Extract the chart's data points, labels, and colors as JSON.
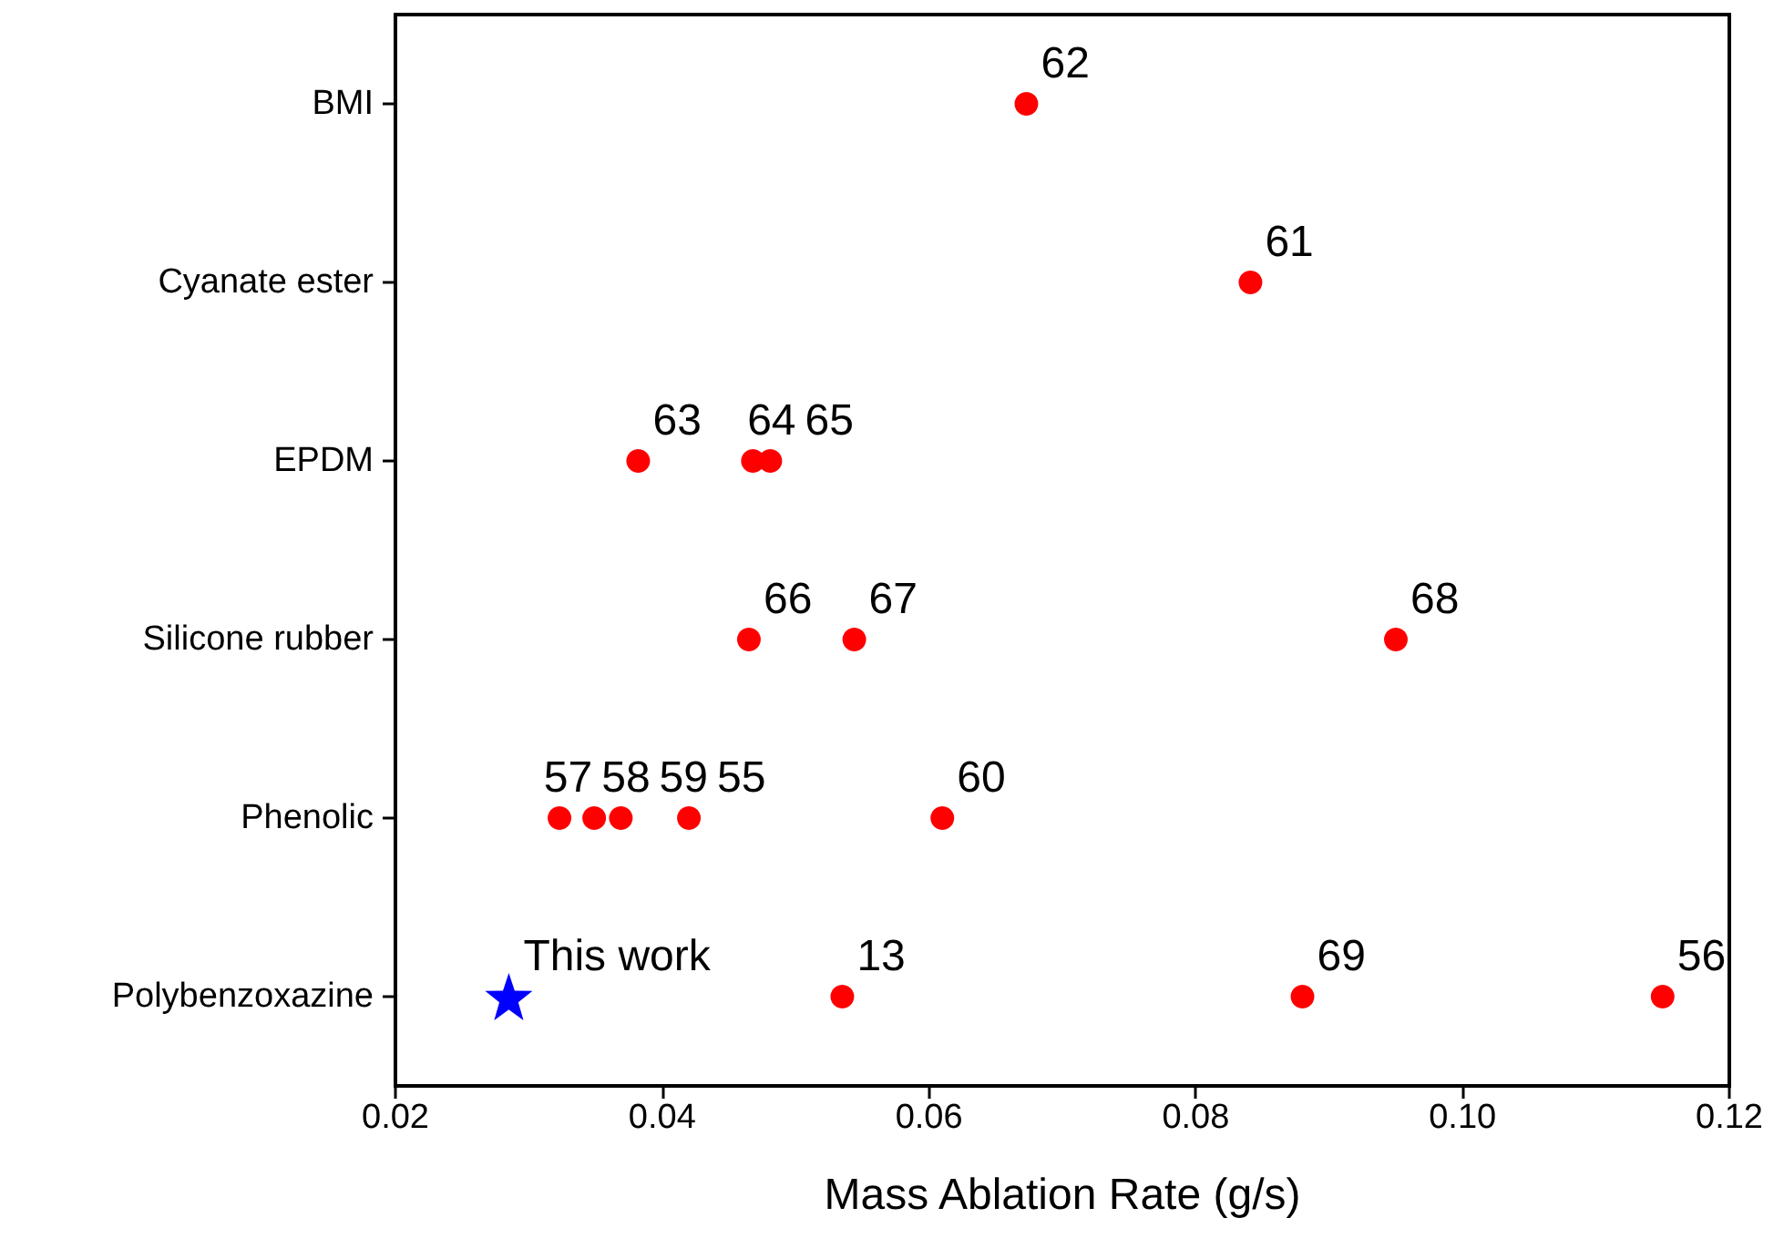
{
  "chart_data": {
    "type": "scatter",
    "orientation": "horizontal",
    "xlabel": "Mass Ablation Rate (g/s)",
    "categories": [
      "BMI",
      "Cyanate ester",
      "EPDM",
      "Silicone rubber",
      "Phenolic",
      "Polybenzoxazine"
    ],
    "xlim": [
      0.02,
      0.12
    ],
    "xticks": [
      0.02,
      0.04,
      0.06,
      0.08,
      {
        "value": 0.1,
        "label": "0.10"
      },
      0.12
    ],
    "grid": false,
    "series": [
      {
        "color": "#ff0000",
        "marker": "circle",
        "x": [
          "BMI",
          "Cyanate ester",
          "EPDM",
          "EPDM",
          "EPDM",
          "Silicone rubber",
          "Silicone rubber",
          "Silicone rubber",
          "Phenolic",
          "Phenolic",
          "Phenolic",
          "Phenolic",
          "Phenolic",
          "Polybenzoxazine",
          "Polybenzoxazine",
          "Polybenzoxazine"
        ],
        "values": [
          0.0673,
          0.0841,
          0.0382,
          0.0468,
          0.0481,
          0.0465,
          0.0544,
          0.095,
          0.0323,
          0.0349,
          0.0369,
          0.042,
          0.061,
          0.0535,
          0.088,
          0.115
        ]
      },
      {
        "color": "#0000ff",
        "marker": "star",
        "x": [
          "Polybenzoxazine"
        ],
        "values": [
          0.0285
        ]
      }
    ],
    "annotations": [
      {
        "text": "62",
        "x": 0.0673,
        "y": "BMI"
      },
      {
        "text": "61",
        "x": 0.0841,
        "y": "Cyanate ester"
      },
      {
        "text": "63",
        "x": 0.0382,
        "y": "EPDM"
      },
      {
        "text": "64",
        "x": 0.0468,
        "y": "EPDM"
      },
      {
        "text": "65",
        "x": 0.0481,
        "y": "EPDM"
      },
      {
        "text": "66",
        "x": 0.0465,
        "y": "Silicone rubber"
      },
      {
        "text": "67",
        "x": 0.0544,
        "y": "Silicone rubber"
      },
      {
        "text": "68",
        "x": 0.095,
        "y": "Silicone rubber"
      },
      {
        "text": "57",
        "x": 0.0323,
        "y": "Phenolic"
      },
      {
        "text": "58",
        "x": 0.0349,
        "y": "Phenolic"
      },
      {
        "text": "59",
        "x": 0.0369,
        "y": "Phenolic"
      },
      {
        "text": "55",
        "x": 0.042,
        "y": "Phenolic"
      },
      {
        "text": "60",
        "x": 0.061,
        "y": "Phenolic"
      },
      {
        "text": "This work",
        "x": 0.0285,
        "y": "Polybenzoxazine"
      },
      {
        "text": "13",
        "x": 0.0535,
        "y": "Polybenzoxazine"
      },
      {
        "text": "69",
        "x": 0.088,
        "y": "Polybenzoxazine"
      },
      {
        "text": "56",
        "x": 0.115,
        "y": "Polybenzoxazine"
      }
    ]
  }
}
